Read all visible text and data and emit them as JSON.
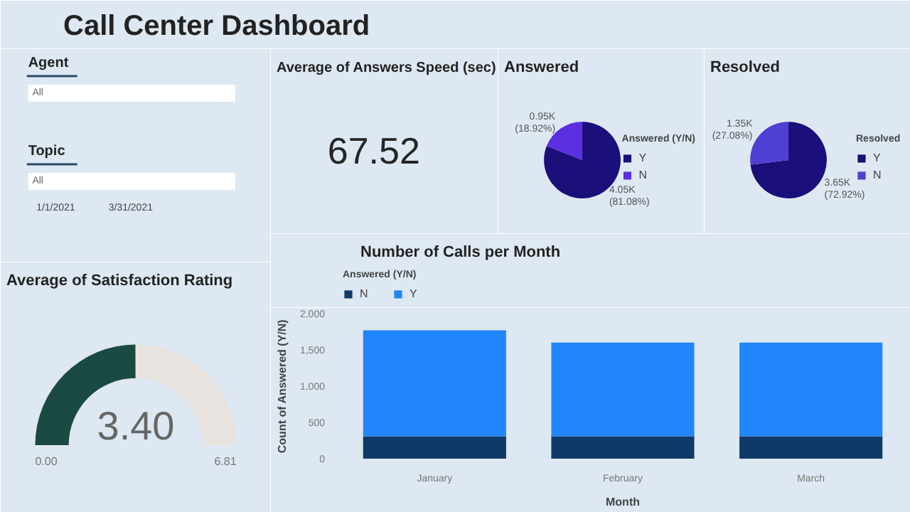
{
  "chart_data": [
    {
      "type": "other",
      "title": "Call Center Dashboard",
      "annotations": [
        "Agent",
        "All",
        "Topic",
        "All",
        "1/1/2021",
        "3/31/2021"
      ]
    },
    {
      "type": "other",
      "title": "Average of Answers Speed (sec)",
      "annotations": [
        "67.52"
      ]
    },
    {
      "type": "pie",
      "title": "Answered",
      "legend_title": "Answered (Y/N)",
      "legend": "right",
      "categories": [
        "Y",
        "N"
      ],
      "values": [
        4050,
        950
      ],
      "colors": [
        "#1b0f7a",
        "#5b2fe0"
      ],
      "value_labels": [
        "4.05K\n(81.08%)",
        "0.95K\n(18.92%)"
      ]
    },
    {
      "type": "pie",
      "title": "Resolved",
      "legend_title": "Resolved",
      "legend": "right",
      "categories": [
        "Y",
        "N"
      ],
      "values": [
        3650,
        1350
      ],
      "colors": [
        "#1b0f7a",
        "#4f3fd2"
      ],
      "value_labels": [
        "3.65K\n(72.92%)",
        "1.35K\n(27.08%)"
      ]
    },
    {
      "type": "donut",
      "title": "Average of Satisfaction Rating",
      "categories": [
        null,
        null
      ],
      "values": [
        3.4,
        3.41
      ],
      "colors": [
        "#1b4a42",
        "#e9e3df"
      ],
      "value_labels": [
        "3.40",
        null
      ],
      "annotations": [
        "0.00",
        "6.81"
      ]
    },
    {
      "type": "bar",
      "title": "Number of Calls per Month",
      "stacked": true,
      "categories": [
        "January",
        "February",
        "March"
      ],
      "xlabel": "Month",
      "ylabel": "Count of Answered (Y/N)",
      "legend_title": "Answered (Y/N)",
      "legend": "top left",
      "grid": false,
      "ylim": [
        0,
        2000
      ],
      "yticks": [
        0,
        500,
        {
          "value": 1000,
          "label": "1,000"
        },
        {
          "value": 1500,
          "label": "1,500"
        },
        {
          "value": 2000,
          "label": "2,000"
        }
      ],
      "series": [
        {
          "name": "N",
          "color": "#0f3a68",
          "values": [
            310,
            310,
            310
          ]
        },
        {
          "name": "Y",
          "color": "#2185fb",
          "values": [
            1460,
            1290,
            1290
          ]
        }
      ]
    }
  ]
}
